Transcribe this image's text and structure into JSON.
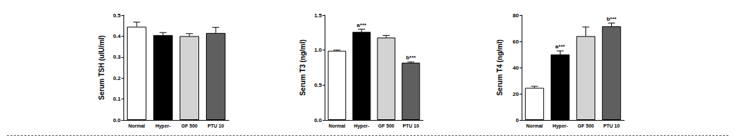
{
  "chart_data": [
    {
      "type": "bar",
      "y_label": "Serum TSH (uIU/ml)",
      "categories": [
        "Normal",
        "Hyper-",
        "GF 500",
        "PTU 10"
      ],
      "values": [
        0.445,
        0.405,
        0.4,
        0.415
      ],
      "errors": [
        0.022,
        0.012,
        0.012,
        0.027
      ],
      "colors": [
        "#ffffff",
        "#000000",
        "#d3d3d3",
        "#5f5f5f"
      ],
      "ylim": [
        0,
        0.5
      ],
      "yticks": [
        {
          "value": 0,
          "label": "0.0"
        },
        0.1,
        0.2,
        0.3,
        0.4,
        0.5
      ],
      "annotations": [],
      "grid": false
    },
    {
      "type": "bar",
      "y_label": "Serum T3 (ng/ml)",
      "categories": [
        "Normal",
        "Hyper-",
        "GF 500",
        "PTU 10"
      ],
      "values": [
        0.99,
        1.26,
        1.18,
        0.82
      ],
      "errors": [
        0.01,
        0.04,
        0.03,
        0.01
      ],
      "colors": [
        "#ffffff",
        "#000000",
        "#d3d3d3",
        "#5f5f5f"
      ],
      "ylim": [
        0,
        1.5
      ],
      "yticks": [
        {
          "value": 0,
          "label": "0.0"
        },
        0.5,
        {
          "value": 1,
          "label": "1.0"
        },
        1.5
      ],
      "annotations": [
        {
          "category": "Hyper-",
          "text": "a***"
        },
        {
          "category": "PTU 10",
          "text": "b***"
        }
      ],
      "grid": false
    },
    {
      "type": "bar",
      "y_label": "Serum T4 (ng/ml)",
      "categories": [
        "Normal",
        "Hyper-",
        "GF 500",
        "PTU 10"
      ],
      "values": [
        24.5,
        50,
        64,
        71.5
      ],
      "errors": [
        1.2,
        2.7,
        7,
        2.5
      ],
      "colors": [
        "#ffffff",
        "#000000",
        "#d3d3d3",
        "#5f5f5f"
      ],
      "ylim": [
        0,
        80
      ],
      "yticks": [
        0,
        20,
        40,
        60,
        80
      ],
      "annotations": [
        {
          "category": "Hyper-",
          "text": "a***"
        },
        {
          "category": "PTU 10",
          "text": "b***"
        }
      ],
      "grid": false
    }
  ]
}
